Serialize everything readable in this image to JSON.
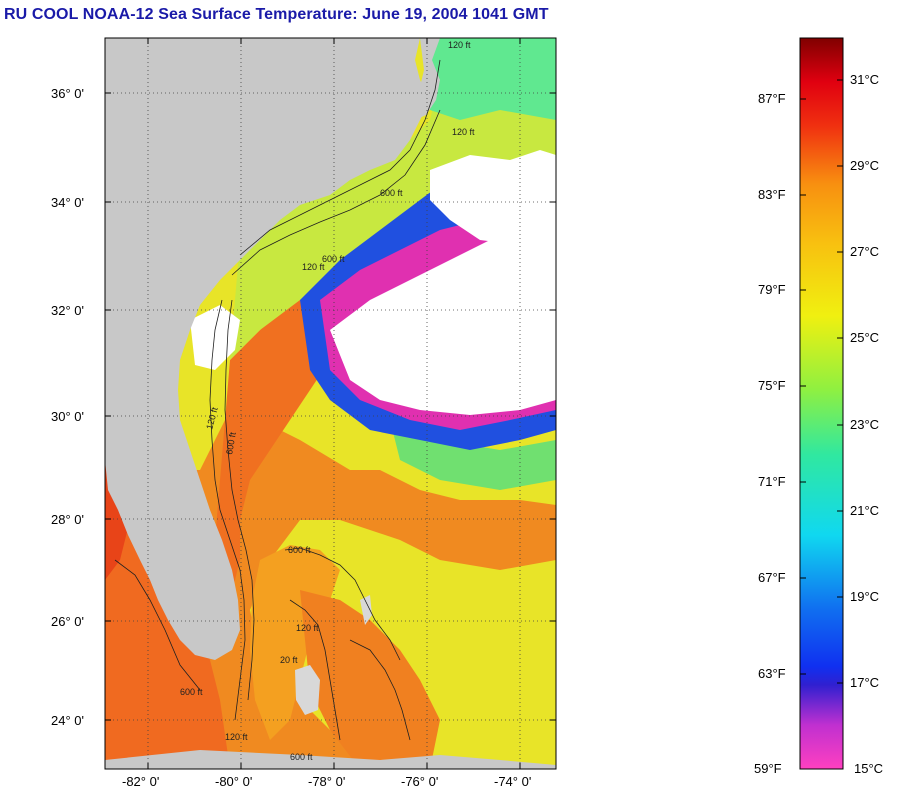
{
  "title": "RU COOL  NOAA-12  Sea Surface Temperature:  June 19, 2004 1041 GMT",
  "map": {
    "lat_ticks": [
      "36° 0'",
      "34° 0'",
      "32° 0'",
      "30° 0'",
      "28° 0'",
      "26° 0'",
      "24° 0'"
    ],
    "lon_ticks": [
      "-82° 0'",
      "-80° 0'",
      "-78° 0'",
      "-76° 0'",
      "-74° 0'"
    ],
    "isobath_labels": [
      "120 ft",
      "600 ft",
      "120 ft",
      "600 ft",
      "120 ft",
      "600 ft",
      "120 ft",
      "600 ft",
      "20 ft",
      "120 ft",
      "600 ft",
      "600 ft",
      "120 ft"
    ],
    "colors": {
      "land": "#c8c8c8",
      "cloud": "#ffffff",
      "warm": "#f07820",
      "mid": "#e8e020",
      "cool": "#30e0a0",
      "cold": "#2040e0",
      "coldest": "#e030b0"
    }
  },
  "colorbar": {
    "fahrenheit": [
      "87°F",
      "83°F",
      "79°F",
      "75°F",
      "71°F",
      "67°F",
      "63°F",
      "59°F"
    ],
    "celsius": [
      "31°C",
      "29°C",
      "27°C",
      "25°C",
      "23°C",
      "21°C",
      "19°C",
      "17°C",
      "15°C"
    ]
  }
}
